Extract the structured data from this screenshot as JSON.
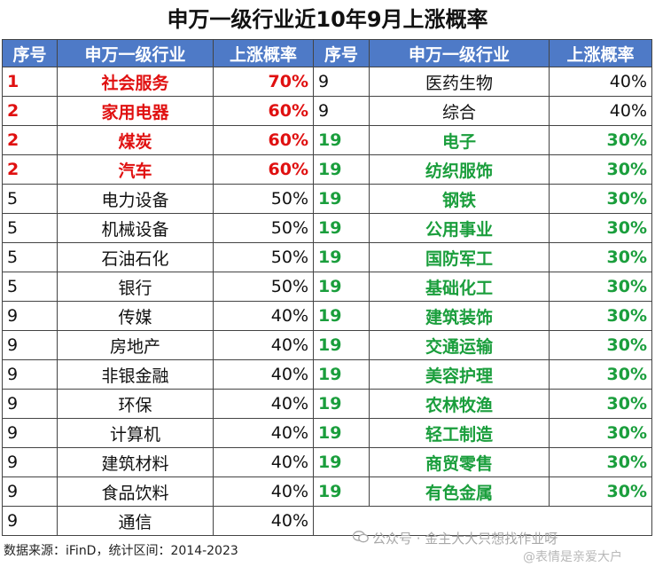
{
  "title": "申万一级行业近10年9月上涨概率",
  "headers": {
    "rank": "序号",
    "industry": "申万一级行业",
    "prob": "上涨概率"
  },
  "left_rows": [
    {
      "rank": "1",
      "industry": "社会服务",
      "prob": "70%",
      "style": "red"
    },
    {
      "rank": "2",
      "industry": "家用电器",
      "prob": "60%",
      "style": "red"
    },
    {
      "rank": "2",
      "industry": "煤炭",
      "prob": "60%",
      "style": "red"
    },
    {
      "rank": "2",
      "industry": "汽车",
      "prob": "60%",
      "style": "red"
    },
    {
      "rank": "5",
      "industry": "电力设备",
      "prob": "50%",
      "style": ""
    },
    {
      "rank": "5",
      "industry": "机械设备",
      "prob": "50%",
      "style": ""
    },
    {
      "rank": "5",
      "industry": "石油石化",
      "prob": "50%",
      "style": ""
    },
    {
      "rank": "5",
      "industry": "银行",
      "prob": "50%",
      "style": ""
    },
    {
      "rank": "9",
      "industry": "传媒",
      "prob": "40%",
      "style": ""
    },
    {
      "rank": "9",
      "industry": "房地产",
      "prob": "40%",
      "style": ""
    },
    {
      "rank": "9",
      "industry": "非银金融",
      "prob": "40%",
      "style": ""
    },
    {
      "rank": "9",
      "industry": "环保",
      "prob": "40%",
      "style": ""
    },
    {
      "rank": "9",
      "industry": "计算机",
      "prob": "40%",
      "style": ""
    },
    {
      "rank": "9",
      "industry": "建筑材料",
      "prob": "40%",
      "style": ""
    },
    {
      "rank": "9",
      "industry": "食品饮料",
      "prob": "40%",
      "style": ""
    },
    {
      "rank": "9",
      "industry": "通信",
      "prob": "40%",
      "style": ""
    }
  ],
  "right_rows": [
    {
      "rank": "9",
      "industry": "医药生物",
      "prob": "40%",
      "style": ""
    },
    {
      "rank": "9",
      "industry": "综合",
      "prob": "40%",
      "style": ""
    },
    {
      "rank": "19",
      "industry": "电子",
      "prob": "30%",
      "style": "green"
    },
    {
      "rank": "19",
      "industry": "纺织服饰",
      "prob": "30%",
      "style": "green"
    },
    {
      "rank": "19",
      "industry": "钢铁",
      "prob": "30%",
      "style": "green"
    },
    {
      "rank": "19",
      "industry": "公用事业",
      "prob": "30%",
      "style": "green"
    },
    {
      "rank": "19",
      "industry": "国防军工",
      "prob": "30%",
      "style": "green"
    },
    {
      "rank": "19",
      "industry": "基础化工",
      "prob": "30%",
      "style": "green"
    },
    {
      "rank": "19",
      "industry": "建筑装饰",
      "prob": "30%",
      "style": "green"
    },
    {
      "rank": "19",
      "industry": "交通运输",
      "prob": "30%",
      "style": "green"
    },
    {
      "rank": "19",
      "industry": "美容护理",
      "prob": "30%",
      "style": "green"
    },
    {
      "rank": "19",
      "industry": "农林牧渔",
      "prob": "30%",
      "style": "green"
    },
    {
      "rank": "19",
      "industry": "轻工制造",
      "prob": "30%",
      "style": "green"
    },
    {
      "rank": "19",
      "industry": "商贸零售",
      "prob": "30%",
      "style": "green"
    },
    {
      "rank": "19",
      "industry": "有色金属",
      "prob": "30%",
      "style": "green"
    }
  ],
  "footer": "数据来源：iFinD，统计区间：2014-2023",
  "watermark": "公众号 · 金主大大只想找作业呀",
  "watermark2": "@表情是亲爱大户",
  "colors": {
    "header_bg": "#4e7ac7",
    "red": "#e01010",
    "green": "#1a9e3c"
  },
  "icons": {
    "watermark_icon": "wechat-icon"
  }
}
